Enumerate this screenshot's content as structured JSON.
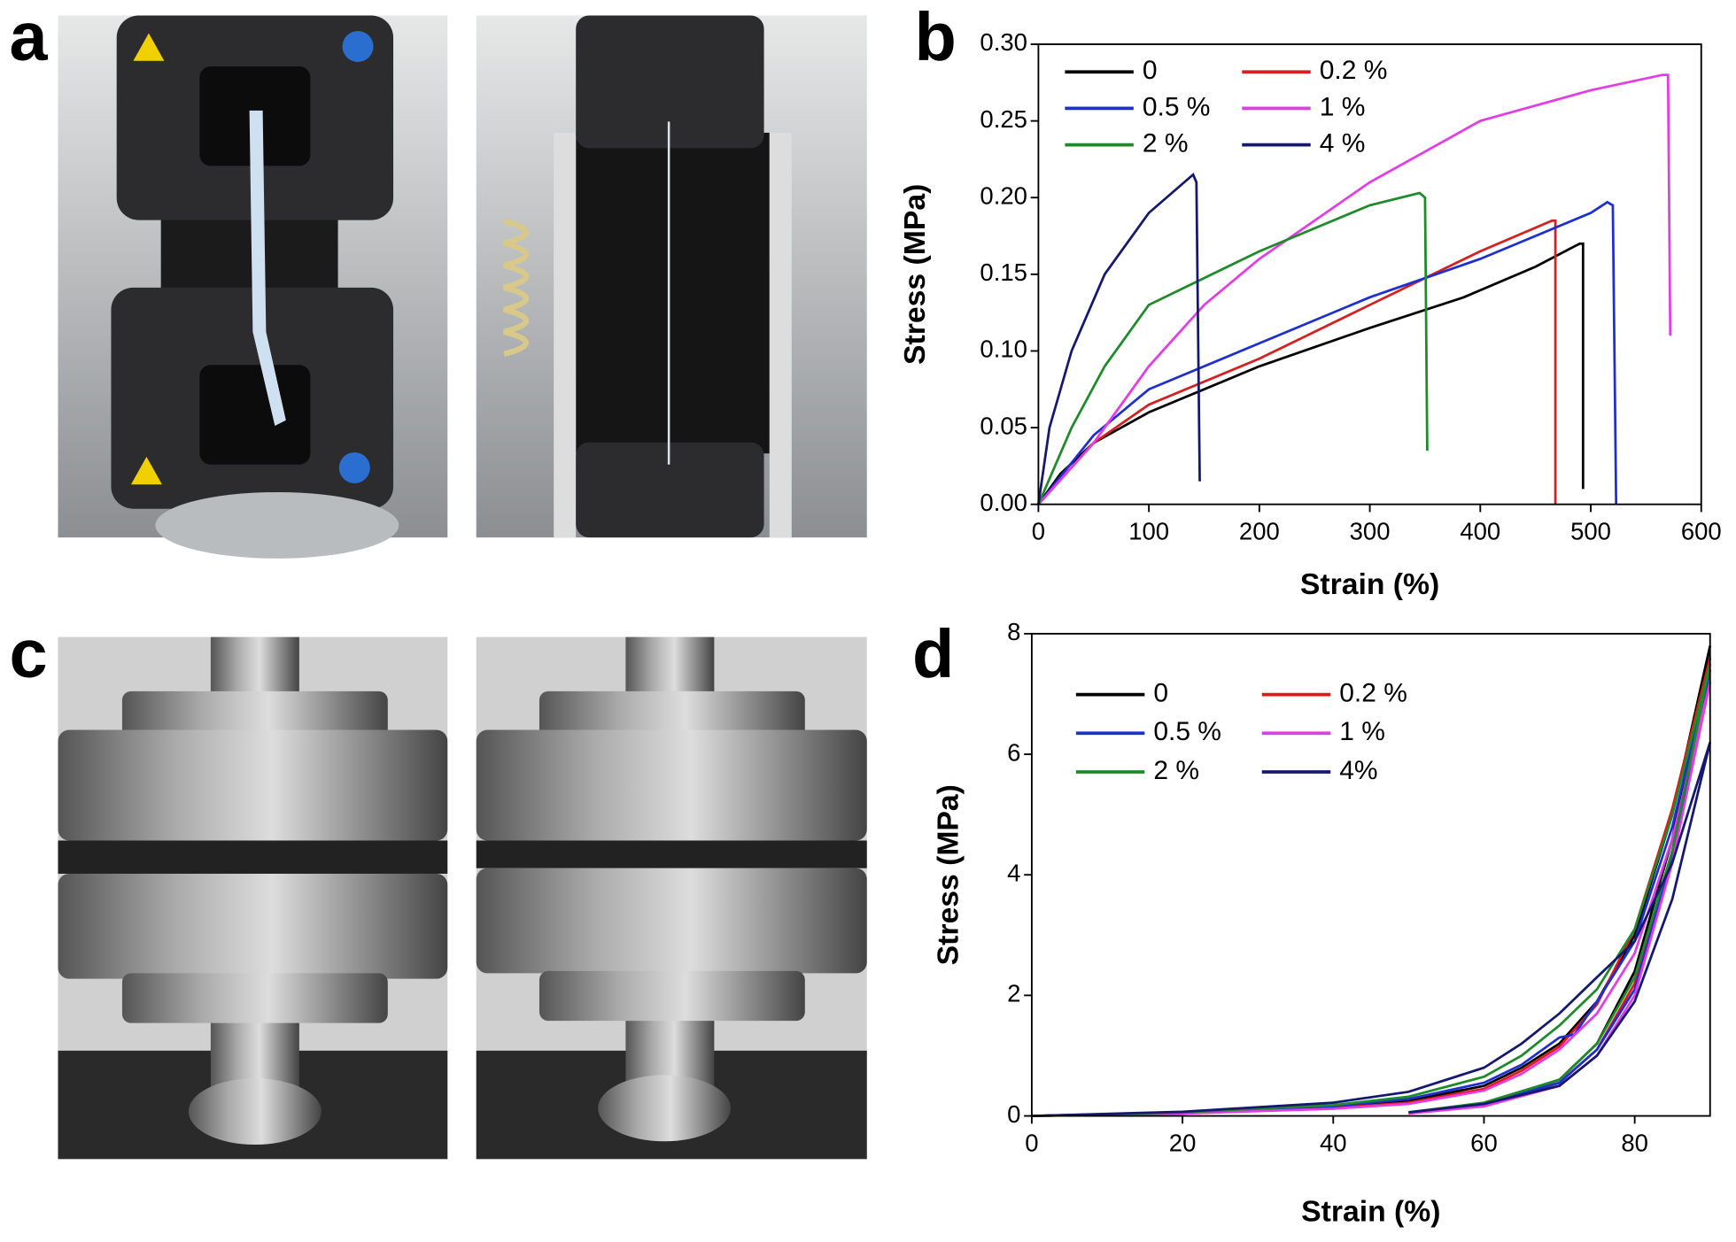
{
  "panel_labels": [
    "a",
    "b",
    "c",
    "d"
  ],
  "chart_data": [
    {
      "type": "line",
      "xlabel": "Strain (%)",
      "ylabel": "Stress (MPa)",
      "xlim": [
        0,
        600
      ],
      "xticks": [
        0,
        100,
        200,
        300,
        400,
        500,
        600
      ],
      "ylim": [
        0,
        0.3
      ],
      "yticks": [
        {
          "value": 0,
          "label": "0.00"
        },
        0.05,
        {
          "value": 0.1,
          "label": "0.10"
        },
        0.15,
        {
          "value": 0.2,
          "label": "0.20"
        },
        0.25,
        {
          "value": 0.3,
          "label": "0.30"
        }
      ],
      "grid": false,
      "series": [
        {
          "name": "0",
          "color": "#000000",
          "x": [
            0,
            20,
            50,
            100,
            200,
            300,
            385,
            450,
            490,
            493,
            493
          ],
          "values": [
            0,
            0.02,
            0.04,
            0.06,
            0.09,
            0.115,
            0.135,
            0.155,
            0.17,
            0.17,
            0.01
          ]
        },
        {
          "name": "0.2 %",
          "color": "#d42020",
          "x": [
            0,
            50,
            100,
            200,
            300,
            400,
            465,
            468,
            468
          ],
          "values": [
            0,
            0.04,
            0.065,
            0.095,
            0.13,
            0.165,
            0.185,
            0.185,
            0
          ]
        },
        {
          "name": "0.5 %",
          "color": "#1e2fd0",
          "x": [
            0,
            50,
            100,
            200,
            300,
            400,
            450,
            500,
            515,
            520,
            523
          ],
          "values": [
            0,
            0.045,
            0.075,
            0.105,
            0.135,
            0.16,
            0.175,
            0.19,
            0.197,
            0.195,
            0
          ]
        },
        {
          "name": "1 %",
          "color": "#e23ce6",
          "x": [
            0,
            50,
            100,
            150,
            200,
            300,
            400,
            500,
            565,
            570,
            572
          ],
          "values": [
            0,
            0.04,
            0.09,
            0.13,
            0.16,
            0.21,
            0.25,
            0.27,
            0.28,
            0.28,
            0.11
          ]
        },
        {
          "name": "2 %",
          "color": "#1f8a2a",
          "x": [
            0,
            30,
            60,
            100,
            200,
            300,
            345,
            350,
            352
          ],
          "values": [
            0,
            0.05,
            0.09,
            0.13,
            0.165,
            0.195,
            0.203,
            0.2,
            0.035
          ]
        },
        {
          "name": "4 %",
          "color": "#14186e",
          "x": [
            0,
            10,
            30,
            60,
            100,
            140,
            143,
            146
          ],
          "values": [
            0,
            0.05,
            0.1,
            0.15,
            0.19,
            0.215,
            0.21,
            0.015
          ]
        }
      ]
    },
    {
      "type": "line",
      "xlabel": "Strain (%)",
      "ylabel": "Stress (MPa)",
      "xlim": [
        0,
        90
      ],
      "xticks": [
        0,
        20,
        40,
        60,
        80
      ],
      "ylim": [
        0,
        8
      ],
      "yticks": [
        0,
        2,
        4,
        6,
        8
      ],
      "grid": false,
      "series": [
        {
          "name": "0",
          "color": "#000000",
          "x": [
            0,
            20,
            40,
            50,
            60,
            65,
            70,
            75,
            80,
            85,
            90,
            85,
            80,
            75,
            70,
            60,
            50
          ],
          "values": [
            0,
            0.05,
            0.15,
            0.25,
            0.5,
            0.8,
            1.2,
            1.9,
            3.0,
            5.0,
            7.8,
            4.6,
            2.4,
            1.2,
            0.6,
            0.2,
            0.05
          ]
        },
        {
          "name": "0.2 %",
          "color": "#e01818",
          "x": [
            0,
            20,
            40,
            50,
            60,
            65,
            70,
            75,
            80,
            85,
            90,
            85,
            80,
            75,
            70,
            60,
            50
          ],
          "values": [
            0,
            0.04,
            0.13,
            0.22,
            0.45,
            0.75,
            1.15,
            1.85,
            3.1,
            5.1,
            7.6,
            4.4,
            2.2,
            1.1,
            0.55,
            0.18,
            0.04
          ]
        },
        {
          "name": "0.5 %",
          "color": "#1e2fd0",
          "x": [
            0,
            20,
            40,
            50,
            60,
            65,
            70,
            72,
            75,
            80,
            85,
            90,
            85,
            80,
            75,
            70,
            60,
            50
          ],
          "values": [
            0,
            0.05,
            0.16,
            0.28,
            0.55,
            0.85,
            1.3,
            1.35,
            1.9,
            2.9,
            4.8,
            7.4,
            4.3,
            2.1,
            1.1,
            0.55,
            0.2,
            0.05
          ]
        },
        {
          "name": "1 %",
          "color": "#e23ce6",
          "x": [
            0,
            20,
            40,
            50,
            60,
            65,
            70,
            75,
            80,
            85,
            90,
            85,
            80,
            75,
            70,
            60,
            50
          ],
          "values": [
            0,
            0.04,
            0.12,
            0.2,
            0.42,
            0.7,
            1.1,
            1.7,
            2.7,
            4.6,
            7.2,
            4.2,
            2.0,
            1.0,
            0.5,
            0.16,
            0.04
          ]
        },
        {
          "name": "2 %",
          "color": "#1f8a2a",
          "x": [
            0,
            20,
            40,
            50,
            60,
            65,
            70,
            75,
            80,
            85,
            90,
            85,
            80,
            75,
            70,
            60,
            50
          ],
          "values": [
            0,
            0.06,
            0.18,
            0.32,
            0.65,
            1.0,
            1.5,
            2.1,
            3.1,
            5.0,
            7.5,
            4.4,
            2.3,
            1.2,
            0.6,
            0.22,
            0.06
          ]
        },
        {
          "name": "4%",
          "color": "#14186e",
          "x": [
            0,
            20,
            40,
            50,
            60,
            65,
            70,
            75,
            80,
            85,
            90,
            85,
            80,
            75,
            70,
            60,
            50
          ],
          "values": [
            0,
            0.07,
            0.22,
            0.4,
            0.8,
            1.2,
            1.7,
            2.3,
            2.9,
            4.2,
            6.2,
            3.6,
            1.9,
            1.0,
            0.5,
            0.2,
            0.06
          ]
        }
      ]
    }
  ]
}
